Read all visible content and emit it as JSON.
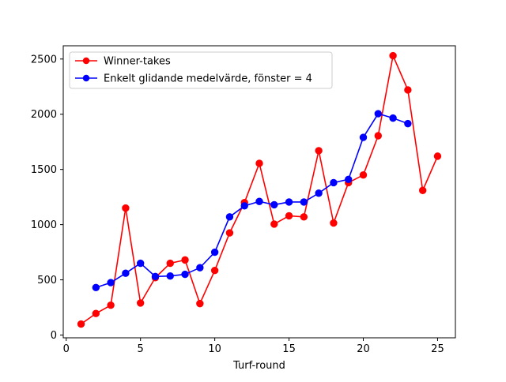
{
  "chart_data": {
    "type": "line",
    "title": "",
    "xlabel": "Turf-round",
    "ylabel": "",
    "xlim": [
      -0.2,
      26.2
    ],
    "ylim": [
      -25,
      2620
    ],
    "xticks": [
      0,
      5,
      10,
      15,
      20,
      25
    ],
    "yticks": [
      0,
      500,
      1000,
      1500,
      2000,
      2500
    ],
    "grid": false,
    "legend_position": "upper left",
    "series": [
      {
        "name": "Winner-takes",
        "color": "#ff0000",
        "x": [
          1,
          2,
          3,
          4,
          5,
          6,
          7,
          8,
          9,
          10,
          11,
          12,
          13,
          14,
          15,
          16,
          17,
          18,
          19,
          20,
          21,
          22,
          23,
          24,
          25
        ],
        "values": [
          100,
          195,
          270,
          1150,
          290,
          520,
          650,
          680,
          285,
          585,
          925,
          1200,
          1555,
          1005,
          1080,
          1070,
          1670,
          1015,
          1380,
          1450,
          1805,
          2530,
          2220,
          1310,
          1620
        ]
      },
      {
        "name": "Enkelt glidande medelvärde, fönster = 4",
        "color": "#0000ff",
        "x": [
          2,
          3,
          4,
          5,
          6,
          7,
          8,
          9,
          10,
          11,
          12,
          13,
          14,
          15,
          16,
          17,
          18,
          19,
          20,
          21,
          22,
          23
        ],
        "values": [
          430,
          475,
          560,
          650,
          530,
          535,
          550,
          610,
          750,
          1070,
          1170,
          1210,
          1180,
          1205,
          1205,
          1285,
          1380,
          1410,
          1790,
          2005,
          1965,
          1915
        ]
      }
    ]
  }
}
